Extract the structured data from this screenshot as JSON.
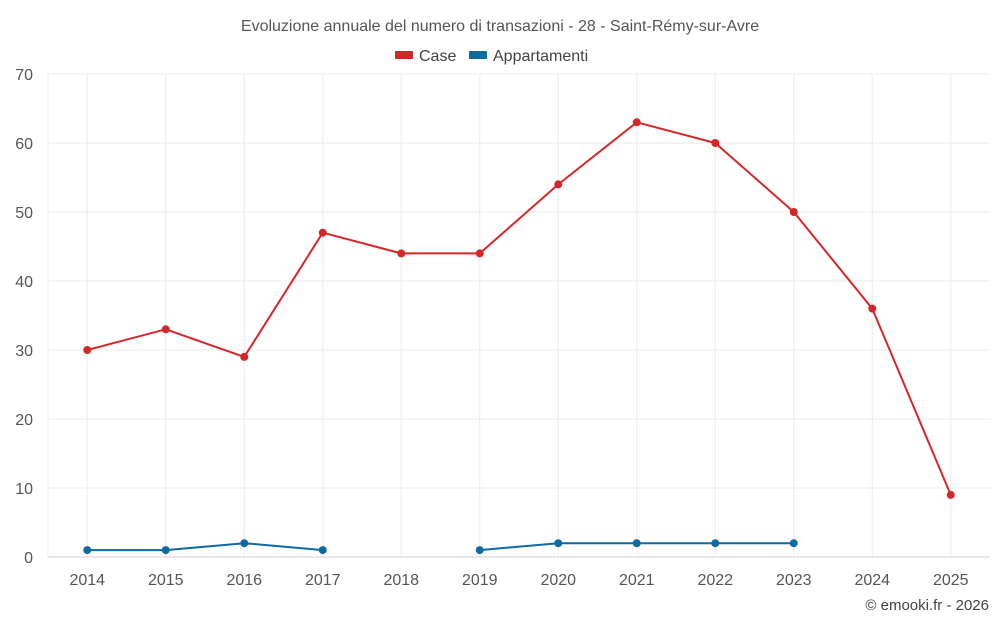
{
  "chart_data": {
    "type": "line",
    "title": "Evoluzione annuale del numero di transazioni - 28 - Saint-Rémy-sur-Avre",
    "categories": [
      "2014",
      "2015",
      "2016",
      "2017",
      "2018",
      "2019",
      "2020",
      "2021",
      "2022",
      "2023",
      "2024",
      "2025"
    ],
    "series": [
      {
        "name": "Case",
        "color": "#d62728",
        "values": [
          30,
          33,
          29,
          47,
          44,
          44,
          54,
          63,
          60,
          50,
          36,
          9
        ]
      },
      {
        "name": "Appartamenti",
        "color": "#0f6aa1",
        "values": [
          1,
          1,
          2,
          1,
          null,
          1,
          2,
          2,
          2,
          2,
          null,
          null
        ]
      }
    ],
    "yticks": [
      0,
      10,
      20,
      30,
      40,
      50,
      60,
      70
    ],
    "ylim": [
      0,
      70
    ],
    "grid": true,
    "legend_position": "top-center",
    "xlabel": "",
    "ylabel": ""
  },
  "credit": "© emooki.fr - 2026"
}
